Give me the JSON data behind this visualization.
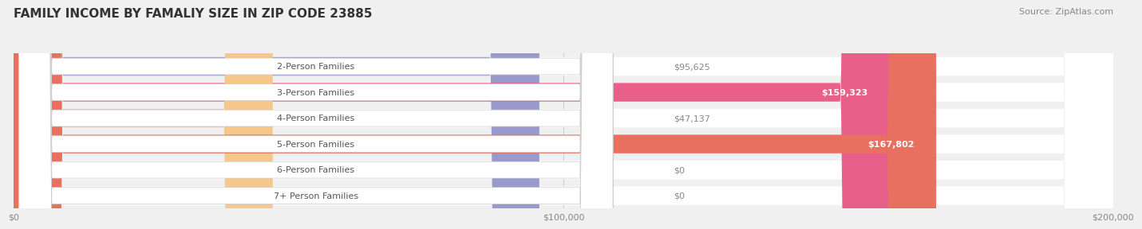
{
  "title": "FAMILY INCOME BY FAMALIY SIZE IN ZIP CODE 23885",
  "source": "Source: ZipAtlas.com",
  "categories": [
    "2-Person Families",
    "3-Person Families",
    "4-Person Families",
    "5-Person Families",
    "6-Person Families",
    "7+ Person Families"
  ],
  "values": [
    95625,
    159323,
    47137,
    167802,
    0,
    0
  ],
  "labels": [
    "$95,625",
    "$159,323",
    "$47,137",
    "$167,802",
    "$0",
    "$0"
  ],
  "bar_colors": [
    "#9999cc",
    "#e8608a",
    "#f5c78a",
    "#e87060",
    "#aabbdd",
    "#c8b8d8"
  ],
  "xlim": [
    0,
    200000
  ],
  "xticklabels": [
    "$0",
    "$100,000",
    "$200,000"
  ],
  "label_inside_color": "#ffffff",
  "label_threshold": 150000,
  "title_fontsize": 11,
  "source_fontsize": 8,
  "bar_label_fontsize": 8,
  "category_fontsize": 8,
  "tick_fontsize": 8
}
